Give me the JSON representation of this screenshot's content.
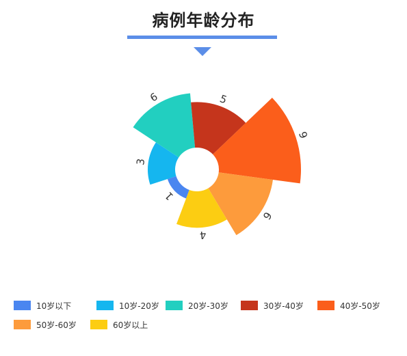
{
  "title": "病例年龄分布",
  "chart_data": {
    "type": "rose",
    "title": "病例年龄分布",
    "categories": [
      "10岁以下",
      "10岁-20岁",
      "20岁-30岁",
      "30岁-40岁",
      "40岁-50岁",
      "50岁-60岁",
      "60岁以上"
    ],
    "values": [
      1,
      3,
      6,
      5,
      9,
      6,
      4
    ],
    "colors": [
      "#4a86f0",
      "#15b6ef",
      "#22cfc0",
      "#c5351c",
      "#fb5e1b",
      "#fd9b3c",
      "#fccd12"
    ],
    "legend_position": "bottom"
  }
}
